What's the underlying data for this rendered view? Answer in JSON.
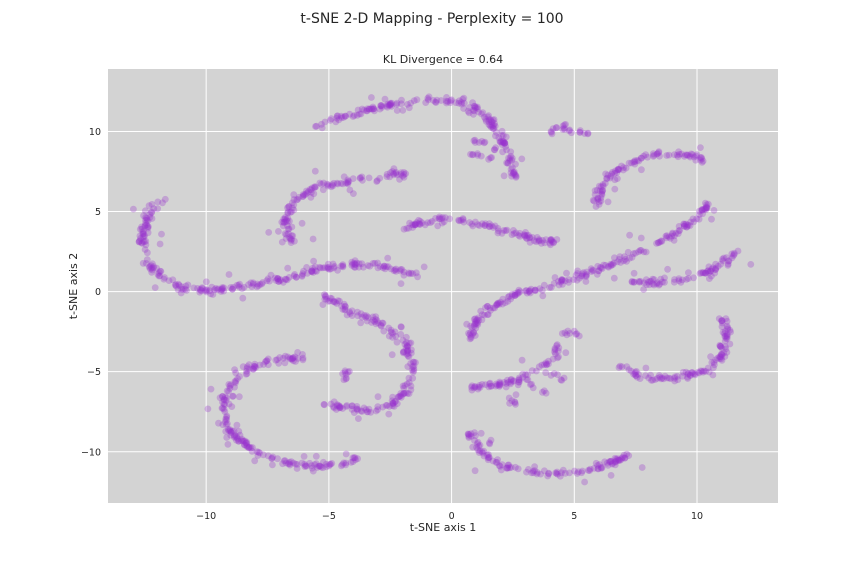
{
  "figure": {
    "suptitle": "t-SNE 2-D Mapping - Perplexity = 100"
  },
  "chart_data": {
    "type": "scatter",
    "title": "KL Divergence = 0.64",
    "xlabel": "t-SNE axis 1",
    "ylabel": "t-SNE axis 2",
    "xlim": [
      -14,
      13.3
    ],
    "ylim": [
      -13.2,
      13.9
    ],
    "xticks": [
      -10,
      -5,
      0,
      5,
      10
    ],
    "yticks": [
      -10,
      -5,
      0,
      5,
      10
    ],
    "xtick_labels": [
      "−10",
      "−5",
      "0",
      "5",
      "10"
    ],
    "ytick_labels": [
      "−10",
      "−5",
      "0",
      "5",
      "10"
    ],
    "grid": true,
    "legend": "none",
    "colors": {
      "point": "#9932cc",
      "background": "#d3d3d3",
      "grid": "#ffffff"
    },
    "curves": [
      [
        [
          -5.5,
          10.2
        ],
        [
          -4.5,
          10.9
        ],
        [
          -3,
          11.5
        ],
        [
          -1.5,
          11.9
        ],
        [
          -0.3,
          12.0
        ],
        [
          0.8,
          11.6
        ],
        [
          1.6,
          10.6
        ],
        [
          2.1,
          9.3
        ],
        [
          2.5,
          7.8
        ],
        [
          2.6,
          7.0
        ]
      ],
      [
        [
          -6.5,
          3.0
        ],
        [
          -6.8,
          4.4
        ],
        [
          -6.5,
          5.7
        ],
        [
          -5.5,
          6.5
        ],
        [
          -4.2,
          6.9
        ],
        [
          -2.8,
          7.2
        ],
        [
          -1.7,
          7.4
        ]
      ],
      [
        [
          -12.0,
          5.9
        ],
        [
          -12.3,
          4.7
        ],
        [
          -12.6,
          3.3
        ],
        [
          -12.5,
          2.1
        ],
        [
          -12.0,
          1.1
        ],
        [
          -11.2,
          0.4
        ],
        [
          -10.0,
          0.0
        ],
        [
          -8.5,
          0.3
        ],
        [
          -7.0,
          0.8
        ],
        [
          -5.5,
          1.3
        ],
        [
          -4.0,
          1.7
        ],
        [
          -2.8,
          1.5
        ],
        [
          -1.8,
          1.2
        ],
        [
          -1.3,
          0.9
        ]
      ],
      [
        [
          -2.0,
          3.9
        ],
        [
          -1.0,
          4.4
        ],
        [
          0.0,
          4.5
        ],
        [
          1.0,
          4.3
        ],
        [
          2.2,
          3.8
        ],
        [
          3.3,
          3.3
        ],
        [
          4.3,
          3.0
        ]
      ],
      [
        [
          0.8,
          -3.0
        ],
        [
          1.0,
          -1.9
        ],
        [
          1.6,
          -0.9
        ],
        [
          2.8,
          -0.1
        ],
        [
          4.3,
          0.5
        ],
        [
          6.0,
          1.4
        ],
        [
          7.5,
          2.4
        ],
        [
          9.0,
          3.5
        ],
        [
          10.0,
          4.6
        ],
        [
          10.6,
          5.8
        ]
      ],
      [
        [
          5.9,
          5.3
        ],
        [
          6.1,
          6.6
        ],
        [
          6.9,
          7.7
        ],
        [
          8.2,
          8.5
        ],
        [
          9.5,
          8.6
        ],
        [
          10.3,
          8.2
        ]
      ],
      [
        [
          7.3,
          0.6
        ],
        [
          8.5,
          0.6
        ],
        [
          9.8,
          0.8
        ],
        [
          10.8,
          1.5
        ],
        [
          11.4,
          2.2
        ],
        [
          11.8,
          2.6
        ]
      ],
      [
        [
          -5.2,
          -0.2
        ],
        [
          -4.0,
          -1.3
        ],
        [
          -2.7,
          -2.2
        ],
        [
          -1.9,
          -3.1
        ],
        [
          -1.6,
          -4.5
        ],
        [
          -1.8,
          -6.2
        ],
        [
          -2.5,
          -7.1
        ],
        [
          -3.6,
          -7.4
        ],
        [
          -5.2,
          -7.0
        ]
      ],
      [
        [
          -6.0,
          -4.1
        ],
        [
          -7.0,
          -4.2
        ],
        [
          -8.0,
          -4.6
        ],
        [
          -8.9,
          -5.7
        ],
        [
          -9.4,
          -7.2
        ],
        [
          -9.2,
          -8.5
        ],
        [
          -8.3,
          -9.7
        ],
        [
          -7.0,
          -10.6
        ],
        [
          -5.5,
          -11.0
        ],
        [
          -4.2,
          -10.7
        ],
        [
          -3.8,
          -10.2
        ]
      ],
      [
        [
          0.8,
          -8.8
        ],
        [
          1.1,
          -9.9
        ],
        [
          2.0,
          -10.9
        ],
        [
          3.3,
          -11.3
        ],
        [
          4.7,
          -11.4
        ],
        [
          6.0,
          -11.0
        ],
        [
          7.2,
          -10.1
        ]
      ],
      [
        [
          11.0,
          -1.6
        ],
        [
          11.2,
          -2.8
        ],
        [
          11.0,
          -4.1
        ],
        [
          10.3,
          -5.0
        ],
        [
          9.0,
          -5.4
        ],
        [
          7.8,
          -5.3
        ],
        [
          6.8,
          -4.6
        ]
      ],
      [
        [
          0.8,
          -6.0
        ],
        [
          2.0,
          -5.8
        ],
        [
          3.1,
          -5.3
        ],
        [
          4.0,
          -4.3
        ],
        [
          4.4,
          -3.2
        ]
      ]
    ],
    "blobs": [
      [
        [
          4.5,
          10.2
        ],
        [
          4.2,
          10.2
        ],
        [
          4.8,
          10.0
        ],
        [
          5.2,
          10.0
        ],
        [
          5.5,
          9.9
        ],
        [
          4.0,
          10.0
        ],
        [
          4.6,
          10.4
        ]
      ],
      [
        [
          1.3,
          9.3
        ],
        [
          1.1,
          8.6
        ],
        [
          1.6,
          8.4
        ],
        [
          0.8,
          8.6
        ],
        [
          1.8,
          8.9
        ],
        [
          0.9,
          9.4
        ]
      ],
      [
        [
          -4.3,
          -5.0
        ],
        [
          -4.3,
          -5.2
        ],
        [
          -4.3,
          -5.4
        ]
      ],
      [
        [
          4.9,
          -2.5
        ],
        [
          5.1,
          -2.7
        ],
        [
          4.6,
          -2.6
        ]
      ],
      [
        [
          3.3,
          -5.8
        ],
        [
          2.5,
          -6.8
        ],
        [
          4.2,
          -5.2
        ],
        [
          3.8,
          -6.3
        ],
        [
          2.6,
          -7.0
        ],
        [
          4.5,
          -5.5
        ]
      ]
    ],
    "n_points": 1700
  }
}
